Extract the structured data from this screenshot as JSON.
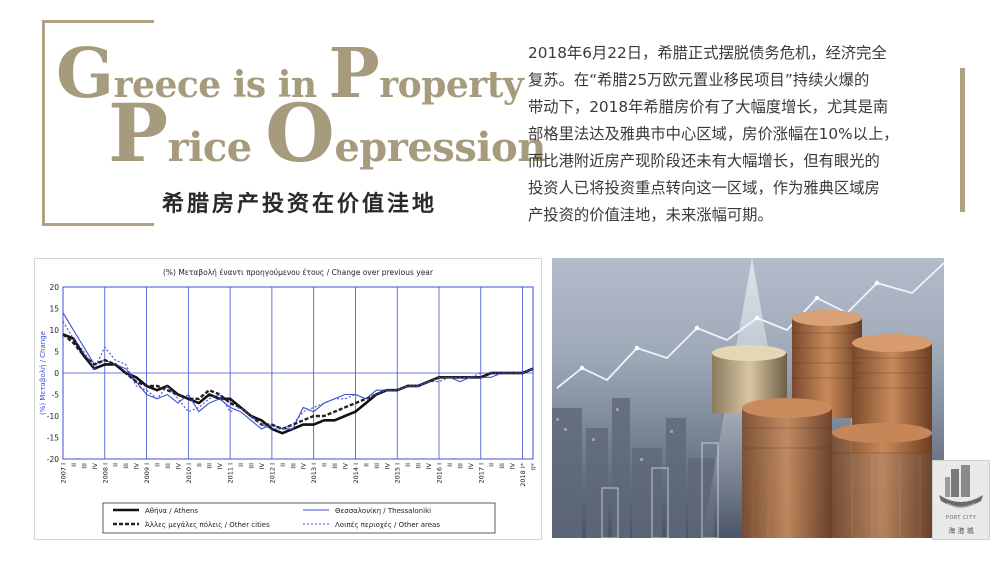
{
  "title": {
    "line1": {
      "cap1": "G",
      "rest1": "reece is in ",
      "cap2": "P",
      "rest2": "roperty"
    },
    "line2": {
      "cap1": "P",
      "rest1": "rice ",
      "cap2": "O",
      "rest2": "epression"
    },
    "subtitle_cn": "希腊房产投资在价值洼地"
  },
  "paragraph": [
    "2018年6月22日，希腊正式摆脱债务危机，经济完全",
    "复苏。在“希腊25万欧元置业移民项目”持续火爆的",
    "带动下，2018年希腊房价有了大幅度增长，尤其是南",
    "部格里法达及雅典市中心区域，房价涨幅在10%以上，",
    "而比港附近房产现阶段还未有大幅增长，但有眼光的",
    "投资人已将投资重点转向这一区域，作为雅典区域房",
    "产投资的价值洼地，未来涨幅可期。"
  ],
  "colors": {
    "accent": "#b1a184",
    "title": "#a69c7d",
    "chart_line_black": "#111111",
    "chart_line_blue": "#3d4fd6"
  },
  "chart_data": {
    "type": "line",
    "title": "(%) Μεταβολή έναντι προηγούμενου έτους / Change over previous year",
    "ylabel": "(%) Μεταβολή / Change",
    "ylim": [
      -20,
      20
    ],
    "yticks": [
      20,
      15,
      10,
      5,
      0,
      -5,
      -10,
      -15,
      -20
    ],
    "x_years": [
      "2007",
      "2008",
      "2009",
      "2010",
      "2011",
      "2012",
      "2013",
      "2014",
      "2015",
      "2016",
      "2017",
      "2018"
    ],
    "x_quarter_labels": [
      "I",
      "II",
      "III",
      "IV"
    ],
    "x_last_labels": [
      "I*",
      "II*"
    ],
    "x": [
      0,
      1,
      2,
      3,
      4,
      5,
      6,
      7,
      8,
      9,
      10,
      11,
      12,
      13,
      14,
      15,
      16,
      17,
      18,
      19,
      20,
      21,
      22,
      23,
      24,
      25,
      26,
      27,
      28,
      29,
      30,
      31,
      32,
      33,
      34,
      35,
      36,
      37,
      38,
      39,
      40,
      41,
      42,
      43,
      44,
      45
    ],
    "series": [
      {
        "name": "Αθήνα / Athens",
        "style": "solid-thick",
        "values": [
          9,
          8,
          4,
          1,
          2,
          2,
          0,
          -1,
          -3,
          -4,
          -3,
          -5,
          -6,
          -7,
          -5,
          -6,
          -6,
          -8,
          -10,
          -11,
          -13,
          -14,
          -13,
          -12,
          -12,
          -11,
          -11,
          -10,
          -9,
          -7,
          -5,
          -4,
          -4,
          -3,
          -3,
          -2,
          -1,
          -1,
          -1,
          -1,
          -1,
          0,
          0,
          0,
          0,
          1
        ]
      },
      {
        "name": "Θεσσαλονίκη / Thessaloniki",
        "style": "solid-thin-blue",
        "values": [
          14,
          10,
          6,
          2,
          3,
          2,
          1,
          -2,
          -5,
          -6,
          -5,
          -7,
          -5,
          -9,
          -7,
          -6,
          -8,
          -9,
          -11,
          -13,
          -12,
          -13,
          -13,
          -8,
          -9,
          -7,
          -6,
          -5,
          -5,
          -6,
          -4,
          -4,
          -4,
          -3,
          -3,
          -2,
          -1,
          -1,
          -2,
          -1,
          -1,
          -1,
          0,
          0,
          0,
          1
        ]
      },
      {
        "name": "Άλλες μεγάλες πόλεις / Other cities",
        "style": "dashed-thick",
        "values": [
          9,
          7,
          4,
          2,
          3,
          2,
          0,
          -2,
          -3,
          -3,
          -4,
          -5,
          -6,
          -6,
          -4,
          -5,
          -7,
          -8,
          -10,
          -12,
          -12,
          -13,
          -12,
          -11,
          -10,
          -10,
          -9,
          -8,
          -7,
          -6,
          -5,
          -4,
          -4,
          -3,
          -3,
          -2,
          -1,
          -1,
          -1,
          -1,
          -1,
          0,
          0,
          0,
          0,
          1
        ]
      },
      {
        "name": "Λοιπές περιοχές / Other areas",
        "style": "dotted-blue",
        "values": [
          12,
          8,
          5,
          1,
          6,
          3,
          2,
          -3,
          -4,
          -6,
          -3,
          -6,
          -9,
          -8,
          -6,
          -5,
          -9,
          -8,
          -10,
          -12,
          -13,
          -13,
          -12,
          -9,
          -8,
          -7,
          -6,
          -6,
          -5,
          -6,
          -5,
          -4,
          -4,
          -3,
          -3,
          -2,
          -2,
          -1,
          -1,
          -1,
          0,
          0,
          0,
          0,
          0,
          1
        ]
      }
    ]
  },
  "logo": {
    "en": "PORT CITY",
    "cn": "海 港 城"
  }
}
